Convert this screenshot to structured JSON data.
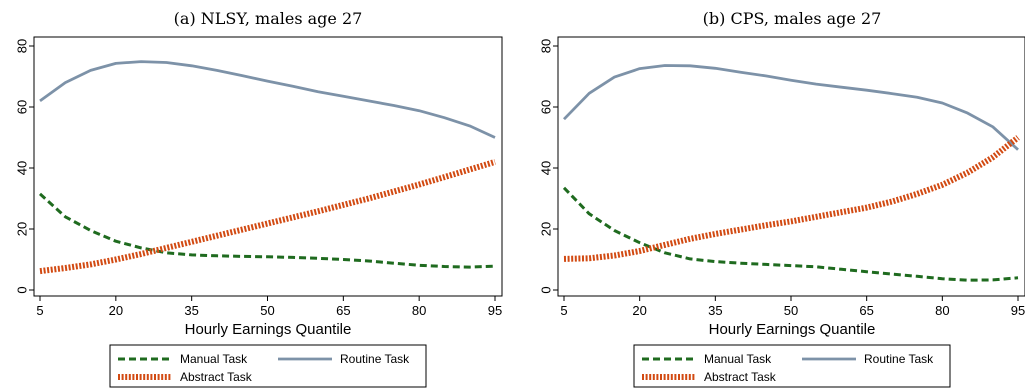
{
  "colors": {
    "manual": "#1f6b1f",
    "routine": "#7d92a8",
    "abstract": "#d24a12",
    "axis": "#000000"
  },
  "chart_data": [
    {
      "type": "line",
      "title": "(a) NLSY, males age 27",
      "xlabel": "Hourly Earnings Quantile",
      "ylabel": "",
      "xlim": [
        5,
        95
      ],
      "ylim": [
        0,
        80
      ],
      "xticks": [
        "5",
        "20",
        "35",
        "50",
        "65",
        "80",
        "95"
      ],
      "yticks": [
        "0",
        "20",
        "40",
        "60",
        "80"
      ],
      "grid": false,
      "legend_position": "bottom",
      "series": [
        {
          "name": "Manual Task",
          "style": "dashed",
          "color": "#1f6b1f",
          "x": [
            5,
            10,
            15,
            20,
            25,
            30,
            35,
            40,
            45,
            50,
            55,
            60,
            65,
            70,
            75,
            80,
            85,
            90,
            95
          ],
          "y": [
            31.5,
            24,
            19.5,
            16,
            13.8,
            12.2,
            11.5,
            11.2,
            11,
            10.9,
            10.7,
            10.4,
            10,
            9.5,
            8.8,
            8.1,
            7.7,
            7.5,
            7.8
          ]
        },
        {
          "name": "Routine Task",
          "style": "solid",
          "color": "#7d92a8",
          "x": [
            5,
            10,
            15,
            20,
            25,
            30,
            35,
            40,
            45,
            50,
            55,
            60,
            65,
            70,
            75,
            80,
            85,
            90,
            95
          ],
          "y": [
            62,
            68,
            72,
            74.3,
            74.9,
            74.6,
            73.5,
            72,
            70.3,
            68.5,
            66.8,
            65,
            63.5,
            62,
            60.5,
            58.8,
            56.5,
            53.8,
            50
          ]
        },
        {
          "name": "Abstract Task",
          "style": "dotted-thick",
          "color": "#d24a12",
          "x": [
            5,
            10,
            15,
            20,
            25,
            30,
            35,
            40,
            45,
            50,
            55,
            60,
            65,
            70,
            75,
            80,
            85,
            90,
            95
          ],
          "y": [
            6.2,
            7.2,
            8.4,
            10,
            11.8,
            13.8,
            15.8,
            17.8,
            19.8,
            21.8,
            23.8,
            25.8,
            27.9,
            30,
            32.3,
            34.6,
            37,
            39.5,
            42
          ]
        }
      ]
    },
    {
      "type": "line",
      "title": "(b) CPS, males age 27",
      "xlabel": "Hourly Earnings Quantile",
      "ylabel": "",
      "xlim": [
        5,
        95
      ],
      "ylim": [
        0,
        80
      ],
      "xticks": [
        "5",
        "20",
        "35",
        "50",
        "65",
        "80",
        "95"
      ],
      "yticks": [
        "0",
        "20",
        "40",
        "60",
        "80"
      ],
      "grid": false,
      "legend_position": "bottom",
      "series": [
        {
          "name": "Manual Task",
          "style": "dashed",
          "color": "#1f6b1f",
          "x": [
            5,
            10,
            15,
            20,
            25,
            30,
            35,
            40,
            45,
            50,
            55,
            60,
            65,
            70,
            75,
            80,
            85,
            90,
            95
          ],
          "y": [
            33.5,
            25,
            19.5,
            15.5,
            12.2,
            10.2,
            9.3,
            8.8,
            8.4,
            8,
            7.6,
            6.8,
            6,
            5.2,
            4.5,
            3.7,
            3.2,
            3.3,
            4
          ]
        },
        {
          "name": "Routine Task",
          "style": "solid",
          "color": "#7d92a8",
          "x": [
            5,
            10,
            15,
            20,
            25,
            30,
            35,
            40,
            45,
            50,
            55,
            60,
            65,
            70,
            75,
            80,
            85,
            90,
            95
          ],
          "y": [
            56,
            64.5,
            69.8,
            72.6,
            73.6,
            73.5,
            72.7,
            71.4,
            70.2,
            68.8,
            67.5,
            66.5,
            65.5,
            64.4,
            63.2,
            61.3,
            58,
            53.5,
            46
          ]
        },
        {
          "name": "Abstract Task",
          "style": "dotted-thick",
          "color": "#d24a12",
          "x": [
            5,
            10,
            15,
            20,
            25,
            30,
            35,
            40,
            45,
            50,
            55,
            60,
            65,
            70,
            75,
            80,
            85,
            90,
            95
          ],
          "y": [
            10.2,
            10.4,
            11.3,
            12.8,
            14.8,
            16.8,
            18.4,
            19.8,
            21.2,
            22.5,
            24,
            25.5,
            27,
            29,
            31.5,
            34.5,
            38.5,
            43.5,
            50
          ]
        }
      ]
    }
  ]
}
